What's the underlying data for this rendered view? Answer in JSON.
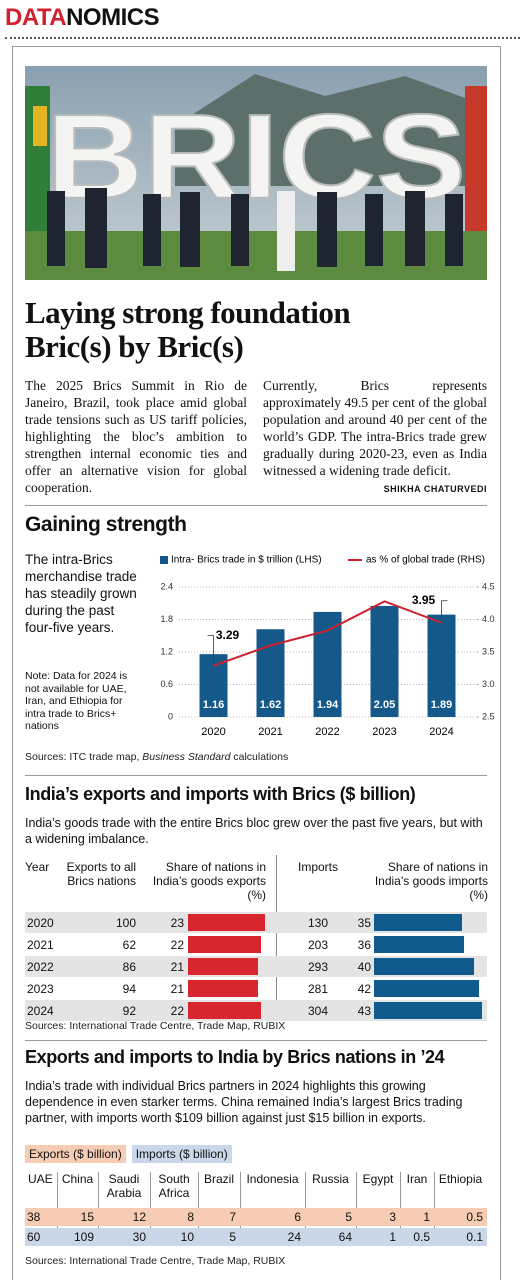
{
  "masthead": {
    "part1": "DATA",
    "part2": "NOMICS"
  },
  "photo": {
    "sign_text": "BRICS"
  },
  "headline": [
    "Laying strong foundation",
    "Bric(s) by Bric(s)"
  ],
  "intro": {
    "column_1": "The 2025 Brics Summit in Rio de Janeiro, Brazil, took place amid global trade tensions such as US tariff policies, highlighting the bloc’s ambition to strengthen internal economic ties and offer an alternative vision for global cooperation.",
    "column_2": "Currently, Brics represents approximately 49.5 per cent of the global population and around 40 per cent of the world’s GDP. The intra-Brics trade grew gradually during 2020-23, even as India witnessed a widening trade deficit.",
    "byline": "SHIKHA CHATURVEDI"
  },
  "chart_data": [
    {
      "type": "bar",
      "title": "Gaining strength",
      "description": "The intra-Brics merchandise trade has steadily grown during the past four-five years.",
      "note": "Note: Data for 2024 is not available for UAE, Iran, and Ethiopia for intra trade to Brics+ nations",
      "sources": [
        "Sources: ITC trade map, ",
        "Business Standard",
        " calculations"
      ],
      "categories": [
        "2020",
        "2021",
        "2022",
        "2023",
        "2024"
      ],
      "series": [
        {
          "name": "Intra- Brics trade in $ trillion (LHS)",
          "color": "#14598a",
          "values": [
            1.16,
            1.62,
            1.94,
            2.05,
            1.89
          ]
        },
        {
          "name": "as % of global trade (RHS)",
          "color": "#d0202e",
          "type": "line",
          "axis": "y2",
          "values": [
            3.29,
            3.6,
            3.83,
            4.28,
            3.95
          ]
        }
      ],
      "ylim": [
        0,
        2.4
      ],
      "yticks": [
        0,
        0.6,
        1.2,
        1.8,
        2.4
      ],
      "y2lim": [
        2.5,
        4.5
      ],
      "y2ticks": [
        2.5,
        {
          "value": 3,
          "label": "3.0"
        },
        3.5,
        {
          "value": 4,
          "label": "4.0"
        },
        4.5
      ],
      "grid": true
    },
    {
      "type": "table-bar",
      "title": "India’s exports and imports with Brics ($ billion)",
      "subtitle": "India’s goods trade with the entire Brics bloc grew over the past five years, but with a widening imbalance.",
      "year_header": "Year",
      "categories": [
        "2020",
        "2021",
        "2022",
        "2023",
        "2024"
      ],
      "series": [
        {
          "name": "Exports to all Brics nations",
          "values": [
            100,
            62,
            86,
            94,
            92
          ]
        },
        {
          "name": "Share of nations in India’s goods exports (%)",
          "color": "#d7262e",
          "xlim": [
            0,
            24
          ],
          "values": [
            23,
            22,
            21,
            21,
            22
          ]
        },
        {
          "name": "Imports",
          "values": [
            130,
            203,
            293,
            281,
            304
          ]
        },
        {
          "name": "Share of nations in India’s goods imports (%)",
          "color": "#0f5b8e",
          "xlim": [
            0,
            45
          ],
          "values": [
            35,
            36,
            40,
            42,
            43
          ]
        }
      ],
      "sources": "Sources: International Trade Centre, Trade Map, RUBIX"
    },
    {
      "type": "table",
      "title": "Exports and imports to India by Brics nations in ’24",
      "subtitle": "India’s trade with individual Brics partners in 2024 highlights this growing dependence in even starker terms. China remained India’s largest Brics trading partner, with imports worth $109 billion against just $15 billion in exports.",
      "categories": [
        "UAE",
        "China",
        "Saudi Arabia",
        "South Africa",
        "Brazil",
        "Indonesia",
        "Russia",
        "Egypt",
        "Iran",
        "Ethiopia"
      ],
      "series": [
        {
          "name": "Exports ($ billion)",
          "color": "#f6cdb4",
          "values": [
            38,
            15,
            12,
            8,
            7,
            6,
            5,
            3,
            1,
            0.5
          ]
        },
        {
          "name": "Imports ($ billion)",
          "color": "#c9d7e8",
          "values": [
            60,
            109,
            30,
            10,
            5,
            24,
            64,
            1,
            0.5,
            0.1
          ]
        }
      ],
      "sources": "Sources: International Trade Centre, Trade Map, RUBIX"
    }
  ]
}
